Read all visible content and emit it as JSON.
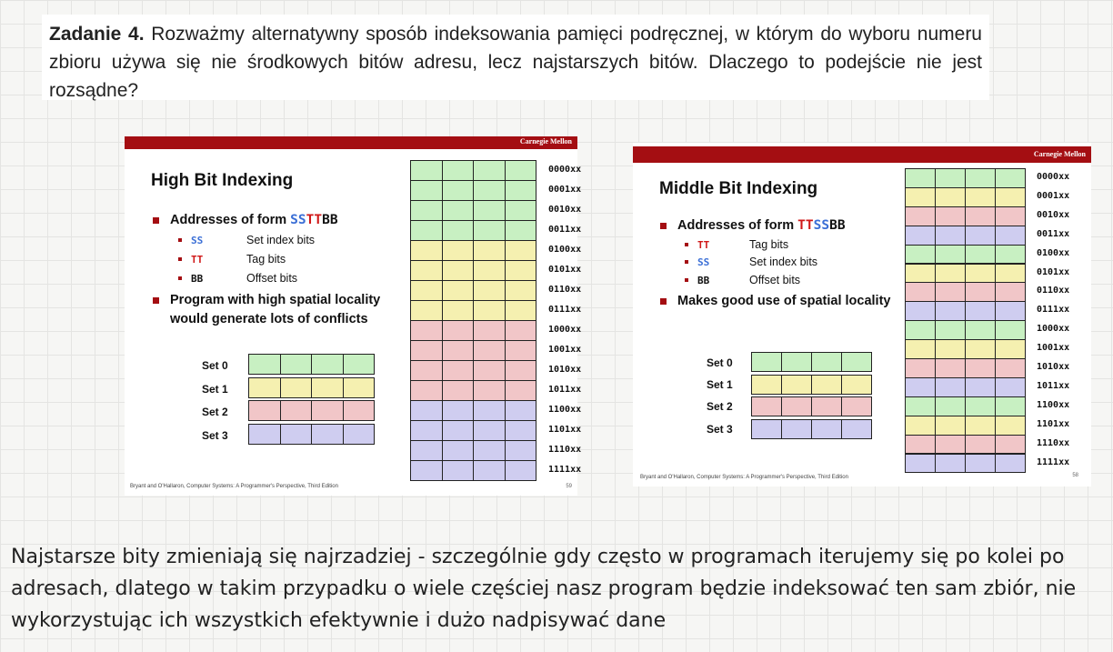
{
  "task": {
    "label": "Zadanie 4.",
    "text": "Rozważmy alternatywny sposób indeksowania pamięci podręcznej, w którym do wyboru numeru zbioru używa się nie środkowych bitów adresu, lecz najstarszych bitów. Dlaczego to podejście nie jest rozsądne?"
  },
  "slide_left": {
    "brand": "Carnegie Mellon",
    "title": "High Bit Indexing",
    "bullet1_prefix": "Addresses of form ",
    "bullet1_p1": "SS",
    "bullet1_p2": "TT",
    "bullet1_p3": "BB",
    "subs": [
      {
        "code": "SS",
        "label": "Set index bits",
        "color": "#3b6fd6"
      },
      {
        "code": "TT",
        "label": "Tag bits",
        "color": "#d01818"
      },
      {
        "code": "BB",
        "label": "Offset bits",
        "color": "#111111"
      }
    ],
    "bullet2_line1": "Program with high spatial locality",
    "bullet2_line2": "would generate lots of conflicts",
    "sets": [
      "Set 0",
      "Set 1",
      "Set 2",
      "Set 3"
    ],
    "addresses": [
      "0000xx",
      "0001xx",
      "0010xx",
      "0011xx",
      "0100xx",
      "0101xx",
      "0110xx",
      "0111xx",
      "1000xx",
      "1001xx",
      "1010xx",
      "1011xx",
      "1100xx",
      "1101xx",
      "1110xx",
      "1111xx"
    ],
    "footer": "Bryant and O'Hallaron, Computer Systems: A Programmer's Perspective, Third Edition",
    "page": "59"
  },
  "slide_right": {
    "brand": "Carnegie Mellon",
    "title": "Middle Bit Indexing",
    "bullet1_prefix": "Addresses of form ",
    "bullet1_p1": "TT",
    "bullet1_p2": "SS",
    "bullet1_p3": "BB",
    "subs": [
      {
        "code": "TT",
        "label": "Tag bits",
        "color": "#d01818"
      },
      {
        "code": "SS",
        "label": "Set index bits",
        "color": "#3b6fd6"
      },
      {
        "code": "BB",
        "label": "Offset bits",
        "color": "#111111"
      }
    ],
    "bullet2_line1": "Makes good use of spatial locality",
    "sets": [
      "Set 0",
      "Set 1",
      "Set 2",
      "Set 3"
    ],
    "addresses": [
      "0000xx",
      "0001xx",
      "0010xx",
      "0011xx",
      "0100xx",
      "0101xx",
      "0110xx",
      "0111xx",
      "1000xx",
      "1001xx",
      "1010xx",
      "1011xx",
      "1100xx",
      "1101xx",
      "1110xx",
      "1111xx"
    ],
    "footer": "Bryant and O'Hallaron, Computer Systems: A Programmer's Perspective, Third Edition",
    "page": "58"
  },
  "colors": {
    "set0": "#c8f0c2",
    "set1": "#f5f0b0",
    "set2": "#f1c6c8",
    "set3": "#cfcdf0",
    "brand_bar": "#a40e12"
  },
  "answer": "Najstarsze bity zmieniają się najrzadziej - szczególnie gdy często w programach iterujemy się po kolei po adresach, dlatego w takim przypadku o wiele częściej nasz program będzie indeksować ten sam zbiór, nie wykorzystując ich wszystkich efektywnie i dużo nadpisywać dane"
}
